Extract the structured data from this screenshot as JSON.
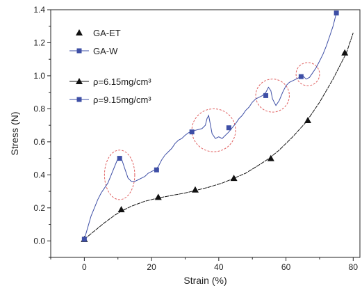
{
  "chart_data": {
    "type": "line",
    "xlabel": "Strain (%)",
    "ylabel": "Stress (N)",
    "xlim": [
      -10,
      82
    ],
    "ylim": [
      -0.1,
      1.4
    ],
    "x_ticks": [
      0,
      20,
      40,
      60,
      80
    ],
    "y_ticks": [
      0.0,
      0.2,
      0.4,
      0.6,
      0.8,
      1.0,
      1.2,
      1.4
    ],
    "x_tick_labels": [
      "0",
      "20",
      "40",
      "60",
      "80"
    ],
    "y_tick_labels": [
      "0.0",
      "0.2",
      "0.4",
      "0.6",
      "0.8",
      "1.0",
      "1.2",
      "1.4"
    ],
    "grid": false,
    "legend_placement": "top-left",
    "legend": [
      {
        "label": "GA-ET",
        "marker": "triangle",
        "line": false
      },
      {
        "label": "GA-W",
        "marker": "square",
        "line": true
      },
      {
        "label": "ρ=6.15mg/cm³",
        "marker": "triangle",
        "line": true
      },
      {
        "label": "ρ=9.15mg/cm³",
        "marker": "square",
        "line": true
      }
    ],
    "series": [
      {
        "marker": "triangle",
        "color": "#111111",
        "line_x": [
          0,
          3,
          6,
          9,
          11,
          14,
          18,
          22,
          26,
          30,
          33,
          37,
          41,
          44,
          48,
          52,
          55,
          58,
          62,
          66,
          70,
          74,
          78,
          80
        ],
        "line_y": [
          0.01,
          0.06,
          0.11,
          0.155,
          0.18,
          0.21,
          0.24,
          0.26,
          0.275,
          0.29,
          0.305,
          0.325,
          0.35,
          0.375,
          0.41,
          0.46,
          0.5,
          0.55,
          0.63,
          0.72,
          0.84,
          0.98,
          1.14,
          1.26
        ],
        "marker_x": [
          0,
          11,
          22,
          33,
          44.5,
          55.5,
          66.5,
          77.5
        ],
        "marker_y": [
          0.01,
          0.19,
          0.265,
          0.31,
          0.38,
          0.5,
          0.73,
          1.14
        ]
      },
      {
        "marker": "square",
        "color": "#3e4fa6",
        "line_x": [
          0,
          1,
          2,
          3,
          4,
          5,
          6,
          7,
          8,
          9,
          9.8,
          10.5,
          11.2,
          12,
          13,
          14,
          15,
          16,
          17,
          18,
          19,
          20,
          21,
          22,
          23,
          24,
          25,
          26,
          27,
          28,
          29,
          30,
          31,
          32,
          33,
          34,
          35,
          36,
          36.5,
          37,
          38,
          39,
          40,
          41,
          42,
          43,
          44,
          45,
          46,
          47,
          48,
          49,
          50,
          51,
          52,
          53,
          54,
          54.8,
          55.5,
          56,
          57,
          58,
          59,
          60,
          61,
          62,
          63,
          64,
          65,
          66,
          67,
          68,
          69,
          70,
          71,
          72,
          73,
          74,
          75
        ],
        "line_y": [
          0.01,
          0.08,
          0.15,
          0.2,
          0.25,
          0.29,
          0.32,
          0.35,
          0.4,
          0.45,
          0.49,
          0.5,
          0.49,
          0.44,
          0.38,
          0.36,
          0.36,
          0.37,
          0.38,
          0.39,
          0.41,
          0.42,
          0.43,
          0.45,
          0.49,
          0.52,
          0.54,
          0.56,
          0.59,
          0.61,
          0.62,
          0.64,
          0.655,
          0.66,
          0.67,
          0.675,
          0.68,
          0.7,
          0.74,
          0.76,
          0.65,
          0.62,
          0.63,
          0.62,
          0.64,
          0.66,
          0.685,
          0.71,
          0.74,
          0.76,
          0.79,
          0.81,
          0.84,
          0.86,
          0.87,
          0.88,
          0.9,
          0.93,
          0.91,
          0.86,
          0.82,
          0.85,
          0.9,
          0.94,
          0.96,
          0.97,
          0.98,
          0.99,
          1.0,
          0.98,
          0.99,
          1.02,
          1.05,
          1.09,
          1.13,
          1.18,
          1.24,
          1.3,
          1.38
        ],
        "marker_x": [
          0,
          10.5,
          21.5,
          32,
          43,
          54,
          64.5,
          75
        ],
        "marker_y": [
          0.01,
          0.5,
          0.43,
          0.66,
          0.685,
          0.88,
          0.995,
          1.38
        ]
      }
    ],
    "highlight_circles": [
      {
        "cx": 10.5,
        "cy": 0.4,
        "rx_data": 4.5,
        "ry_data": 0.15
      },
      {
        "cx": 38.5,
        "cy": 0.67,
        "rx_data": 6.5,
        "ry_data": 0.13
      },
      {
        "cx": 56,
        "cy": 0.88,
        "rx_data": 5,
        "ry_data": 0.1
      },
      {
        "cx": 66.5,
        "cy": 1.01,
        "rx_data": 3.5,
        "ry_data": 0.07
      }
    ],
    "highlight_color": "#e06060"
  }
}
